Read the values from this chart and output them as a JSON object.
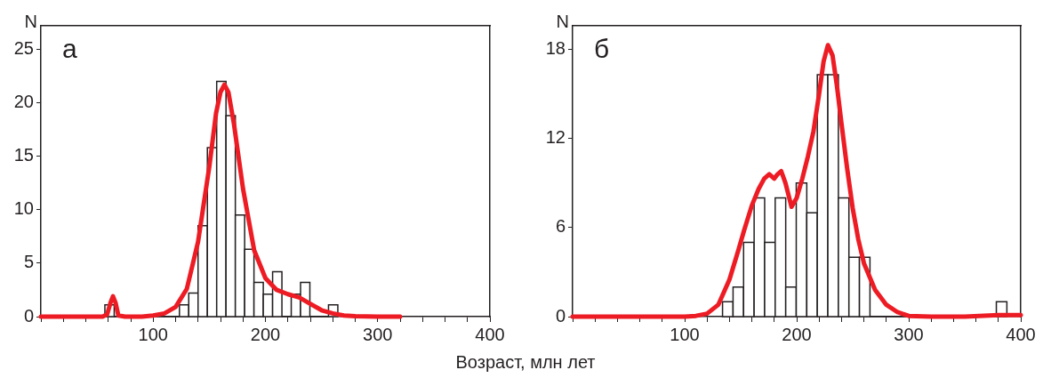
{
  "chart_data": [
    {
      "type": "histogram",
      "title": "а",
      "ylabel": "N",
      "xlabel": "Возраст, млн лет",
      "color": "#231f20",
      "bins": [
        57,
        65.3,
        73.6,
        81.9,
        90.2,
        98.5,
        106.8,
        115.1,
        123.4,
        131.7,
        140,
        148.3,
        156.6,
        164.9,
        173.2,
        181.5,
        189.8,
        198.1,
        206.4,
        214.7,
        223,
        231.3,
        239.6,
        247.9,
        256.2,
        264.5
      ],
      "values": [
        1.1,
        0,
        0,
        0,
        0,
        0,
        0,
        0,
        1.1,
        2.2,
        8.5,
        15.8,
        22,
        18.8,
        9.5,
        6.3,
        3.2,
        2.1,
        4.2,
        0,
        2.1,
        3.2,
        0,
        0,
        1.1
      ],
      "series": [
        {
          "type": "line",
          "color": "#ed1c24",
          "x": [
            0,
            30,
            55,
            59,
            62,
            64.2,
            66.5,
            69,
            75,
            90,
            100,
            110,
            120,
            130,
            140,
            150,
            156,
            160,
            163.5,
            167,
            172,
            180,
            190,
            200,
            210,
            220,
            230,
            240,
            250,
            260,
            270,
            280,
            300,
            320
          ],
          "values": [
            0,
            0,
            0,
            0.2,
            1.3,
            1.9,
            1.3,
            0.1,
            0,
            0,
            0.1,
            0.3,
            0.9,
            2.6,
            7,
            14,
            19,
            21,
            21.7,
            21,
            18,
            12,
            6.2,
            3.6,
            2.5,
            2.1,
            1.8,
            1.2,
            0.6,
            0.3,
            0.1,
            0.05,
            0,
            0
          ]
        }
      ],
      "xlim": [
        0,
        400
      ],
      "ylim": [
        0,
        27.2
      ],
      "xticks": [
        {
          "value": 0,
          "label": null
        },
        {
          "value": 20,
          "label": null
        },
        {
          "value": 40,
          "label": null
        },
        {
          "value": 60,
          "label": null
        },
        {
          "value": 80,
          "label": null
        },
        100,
        {
          "value": 120,
          "label": null
        },
        {
          "value": 140,
          "label": null
        },
        {
          "value": 160,
          "label": null
        },
        {
          "value": 180,
          "label": null
        },
        200,
        {
          "value": 220,
          "label": null
        },
        {
          "value": 240,
          "label": null
        },
        {
          "value": 260,
          "label": null
        },
        {
          "value": 280,
          "label": null
        },
        300,
        {
          "value": 320,
          "label": null
        },
        {
          "value": 340,
          "label": null
        },
        {
          "value": 360,
          "label": null
        },
        {
          "value": 380,
          "label": null
        },
        400
      ],
      "yticks": [
        0,
        5,
        10,
        15,
        20,
        25
      ],
      "grid": false,
      "legend": false
    },
    {
      "type": "histogram",
      "title": "б",
      "ylabel": "N",
      "color": "#231f20",
      "bins": [
        133.8,
        143.2,
        152.6,
        162,
        171.4,
        180.8,
        190.2,
        199.6,
        209,
        218.4,
        227.8,
        237.2,
        246.6,
        256,
        265.4,
        274.8,
        284.2,
        293.6,
        303,
        312.4,
        321.8,
        331.2,
        340.6,
        350,
        359.4,
        368.8,
        378.2,
        387.6
      ],
      "values": [
        1,
        2,
        5,
        8,
        5,
        8,
        2,
        9,
        7,
        16.3,
        16.3,
        8,
        4,
        4,
        0,
        0,
        0,
        0,
        0,
        0,
        0,
        0,
        0,
        0,
        0,
        0,
        1
      ],
      "series": [
        {
          "type": "line",
          "color": "#ed1c24",
          "x": [
            0,
            50,
            100,
            110,
            120,
            130,
            140,
            148,
            153,
            160,
            166,
            171,
            175.5,
            180,
            183,
            186.2,
            190,
            195.4,
            200,
            205,
            210,
            215,
            220,
            224,
            227.9,
            232,
            236,
            240,
            245,
            250,
            255,
            260,
            270,
            280,
            290,
            300,
            320,
            350,
            380,
            400
          ],
          "values": [
            0,
            0,
            0,
            0.05,
            0.2,
            0.8,
            2.5,
            4.5,
            5.8,
            7.5,
            8.6,
            9.3,
            9.6,
            9.3,
            9.6,
            9.8,
            9,
            7.4,
            8,
            9.3,
            10.8,
            12.5,
            15,
            17.2,
            18.3,
            17.6,
            15.5,
            13,
            10,
            7.3,
            5.2,
            3.6,
            1.8,
            0.8,
            0.3,
            0.05,
            0,
            0,
            0.1,
            0.1
          ]
        }
      ],
      "xlim": [
        0,
        400
      ],
      "ylim": [
        0,
        19.6
      ],
      "xticks": [
        {
          "value": 0,
          "label": null
        },
        {
          "value": 20,
          "label": null
        },
        {
          "value": 40,
          "label": null
        },
        {
          "value": 60,
          "label": null
        },
        {
          "value": 80,
          "label": null
        },
        100,
        {
          "value": 120,
          "label": null
        },
        {
          "value": 140,
          "label": null
        },
        {
          "value": 160,
          "label": null
        },
        {
          "value": 180,
          "label": null
        },
        200,
        {
          "value": 220,
          "label": null
        },
        {
          "value": 240,
          "label": null
        },
        {
          "value": 260,
          "label": null
        },
        {
          "value": 280,
          "label": null
        },
        300,
        {
          "value": 320,
          "label": null
        },
        {
          "value": 340,
          "label": null
        },
        {
          "value": 360,
          "label": null
        },
        {
          "value": 380,
          "label": null
        },
        400
      ],
      "yticks": [
        0,
        6,
        12,
        18
      ],
      "grid": false,
      "legend": false
    }
  ]
}
